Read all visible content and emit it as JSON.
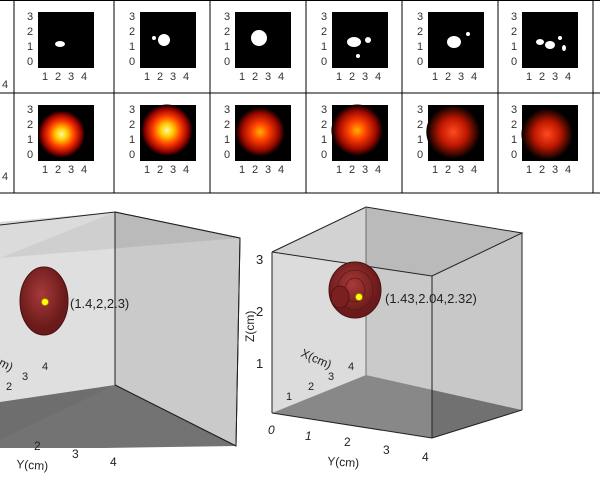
{
  "panels": {
    "yticks": [
      "3",
      "2",
      "1",
      "0"
    ],
    "xticks": [
      "1",
      "2",
      "3",
      "4"
    ],
    "top_row_count": 6,
    "bottom_row_count": 6
  },
  "cube_left": {
    "point_label": "(1.4,2,2.3)",
    "x_axis_label": "m)",
    "y_axis_label": "Y(cm)",
    "x_ticks": [
      "2",
      "3",
      "4"
    ],
    "y_ticks": [
      "2",
      "3",
      "4"
    ]
  },
  "cube_right": {
    "point_label": "(1.43,2.04,2.32)",
    "z_axis_label": "Z(cm)",
    "x_axis_label": "X(cm)",
    "y_axis_label": "Y(cm)",
    "z_ticks": [
      "3",
      "2",
      "1"
    ],
    "x_ticks": [
      "1",
      "2",
      "3",
      "4"
    ],
    "y_ticks": [
      "0",
      "1",
      "2",
      "3",
      "4"
    ]
  },
  "colors": {
    "panel_background": "#000000",
    "grid_line": "#000000",
    "cube_face": "#a8a8a8",
    "cube_floor": "#5a5a5a",
    "tumor": "#8b2a2a",
    "marker": "#ffff00"
  }
}
